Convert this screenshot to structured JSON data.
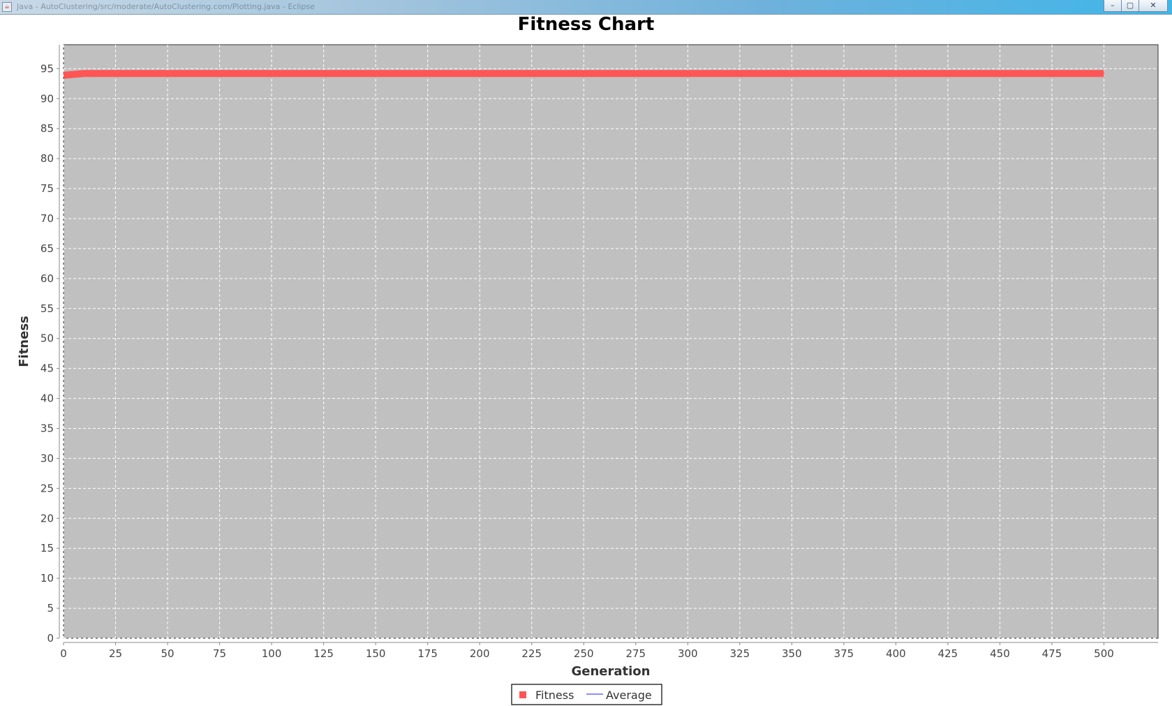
{
  "window": {
    "title": "Java - AutoClustering/src/moderate/AutoClustering.com/Plotting.java - Eclipse",
    "minimize_symbol": "–",
    "maximize_symbol": "▢",
    "close_symbol": "✕",
    "icon": "java-app-icon"
  },
  "chart_data": {
    "type": "line",
    "title": "Fitness Chart",
    "xlabel": "Generation",
    "ylabel": "Fitness",
    "xlim": [
      0,
      526
    ],
    "ylim": [
      0,
      99
    ],
    "x_ticks": [
      0,
      25,
      50,
      75,
      100,
      125,
      150,
      175,
      200,
      225,
      250,
      275,
      300,
      325,
      350,
      375,
      400,
      425,
      450,
      475,
      500
    ],
    "y_ticks": [
      0,
      5,
      10,
      15,
      20,
      25,
      30,
      35,
      40,
      45,
      50,
      55,
      60,
      65,
      70,
      75,
      80,
      85,
      90,
      95
    ],
    "grid": true,
    "legend": "bottom-center",
    "series": [
      {
        "name": "Fitness",
        "color": "#ff5555",
        "x": [
          0,
          10,
          25,
          50,
          100,
          150,
          200,
          250,
          300,
          350,
          400,
          450,
          500
        ],
        "y": [
          93.9,
          94.2,
          94.2,
          94.2,
          94.2,
          94.2,
          94.2,
          94.2,
          94.2,
          94.2,
          94.2,
          94.2,
          94.2
        ]
      },
      {
        "name": "Average",
        "color": "#4a4aff",
        "x": [],
        "y": []
      }
    ]
  }
}
